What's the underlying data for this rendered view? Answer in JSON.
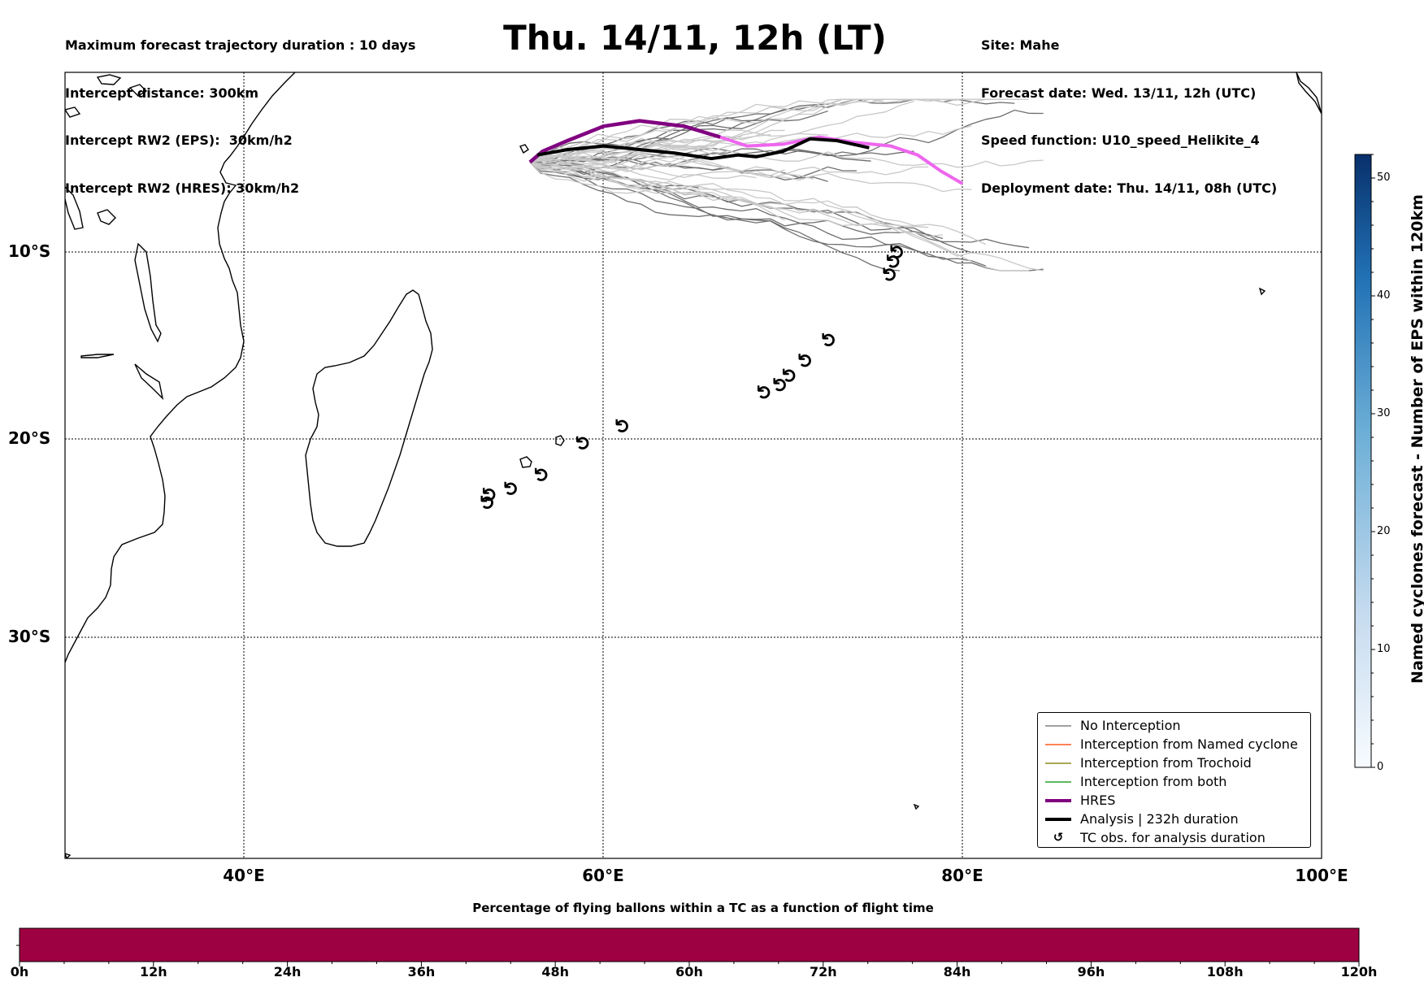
{
  "header": {
    "left_lines": [
      "Maximum forecast trajectory duration : 10 days",
      "Intercept distance: 300km",
      "Intercept RW2 (EPS):  30km/h2",
      "Intercept RW2 (HRES): 30km/h2"
    ],
    "title": "Thu. 14/11, 12h (LT)",
    "right_lines": [
      "Site: Mahe",
      "Forecast date: Wed. 13/11, 12h (UTC)",
      "Speed function: U10_speed_Helikite_4",
      "Deployment date: Thu. 14/11, 08h (UTC)"
    ]
  },
  "map": {
    "lon_range": [
      30,
      100
    ],
    "lat_range": [
      -43.5,
      0
    ],
    "lat_labels": [
      "10°S",
      "20°S",
      "30°S"
    ],
    "lon_labels": [
      "40°E",
      "60°E",
      "80°E",
      "100°E"
    ],
    "grid": "dotted",
    "tc_marker_glyph": "↺",
    "tc_observations": [
      [
        53.6,
        -23.2
      ],
      [
        53.7,
        -22.8
      ],
      [
        54.9,
        -22.5
      ],
      [
        56.6,
        -21.8
      ],
      [
        58.9,
        -20.2
      ],
      [
        61.1,
        -19.3
      ],
      [
        69.0,
        -17.5
      ],
      [
        69.9,
        -17.1
      ],
      [
        70.4,
        -16.6
      ],
      [
        71.3,
        -15.8
      ],
      [
        72.6,
        -14.7
      ],
      [
        76.0,
        -11.2
      ],
      [
        76.2,
        -10.5
      ],
      [
        76.4,
        -10.0
      ]
    ],
    "hres_track": [
      [
        55.9,
        -5.0
      ],
      [
        56.6,
        -4.4
      ],
      [
        58.0,
        -3.8
      ],
      [
        60.0,
        -3.0
      ],
      [
        62.0,
        -2.7
      ],
      [
        64.5,
        -3.0
      ],
      [
        66.5,
        -3.6
      ],
      [
        68.0,
        -4.1
      ],
      [
        70.0,
        -4.0
      ],
      [
        72.0,
        -3.6
      ],
      [
        74.0,
        -3.9
      ],
      [
        76.0,
        -4.1
      ],
      [
        77.5,
        -4.6
      ],
      [
        78.8,
        -5.5
      ],
      [
        80.0,
        -6.2
      ]
    ],
    "analysis_track": [
      [
        56.3,
        -4.6
      ],
      [
        58.0,
        -4.3
      ],
      [
        60.0,
        -4.1
      ],
      [
        62.0,
        -4.3
      ],
      [
        64.0,
        -4.5
      ],
      [
        66.0,
        -4.8
      ],
      [
        67.5,
        -4.6
      ],
      [
        68.5,
        -4.7
      ],
      [
        70.0,
        -4.4
      ],
      [
        71.5,
        -3.7
      ],
      [
        73.0,
        -3.8
      ],
      [
        74.8,
        -4.2
      ]
    ],
    "legend": [
      {
        "label": "No Interception",
        "color": "#808080",
        "style": "thin"
      },
      {
        "label": "Interception from Named cyclone",
        "color": "#ff5a1f",
        "style": "thin"
      },
      {
        "label": "Interception from Trochoid",
        "color": "#8b8b1a",
        "style": "thin"
      },
      {
        "label": "Interception from both",
        "color": "#2ca02c",
        "style": "thin"
      },
      {
        "label": "HRES",
        "color": "#800080",
        "style": "thick"
      },
      {
        "label": "Analysis | 232h duration",
        "color": "#000000",
        "style": "thick"
      },
      {
        "label": "TC obs. for analysis duration",
        "color": "#000000",
        "style": "marker"
      }
    ]
  },
  "colorbar": {
    "label": "Named cyclones forecast - Number of EPS within 120km",
    "min": 0,
    "max": 52,
    "ticks": [
      "0",
      "10",
      "20",
      "30",
      "40",
      "50"
    ],
    "color_low": "#f7fbff",
    "color_high": "#08306b"
  },
  "flight_time_bar": {
    "title": "Percentage of flying ballons within a TC as a function of flight time",
    "tick_labels": [
      "0h",
      "12h",
      "24h",
      "36h",
      "48h",
      "60h",
      "72h",
      "84h",
      "96h",
      "108h",
      "120h"
    ],
    "fill_color": "#9e0142"
  }
}
